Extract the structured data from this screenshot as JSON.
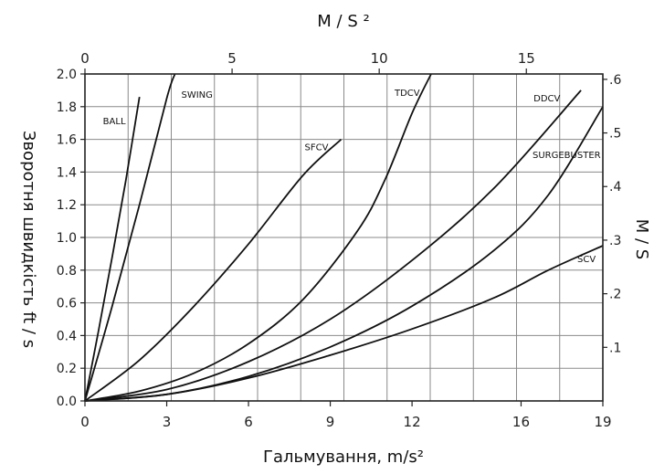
{
  "chart_data": {
    "type": "line",
    "xlabel": "Гальмування, m/s²",
    "x2label": "M / S ²",
    "ylabel": "Зворотня швидкість ft / s",
    "y2label": "M / S",
    "xlim": [
      0,
      19
    ],
    "ylim": [
      0,
      2.0
    ],
    "x2lim": [
      0,
      17.6
    ],
    "y2lim": [
      0,
      0.61
    ],
    "xticks": [
      "0",
      "3",
      "6",
      "9",
      "12",
      "16",
      "19"
    ],
    "xtick_values": [
      0,
      3,
      6,
      9,
      12,
      16,
      19
    ],
    "x2ticks": [
      "0",
      "5",
      "10",
      "15"
    ],
    "x2tick_values": [
      0,
      5,
      10,
      15
    ],
    "yticks": [
      "0.0",
      "0.2",
      "0.4",
      "0.6",
      "0.8",
      "1.0",
      "1.2",
      "1.4",
      "1.6",
      "1.8",
      "2.0"
    ],
    "ytick_values": [
      0,
      0.2,
      0.4,
      0.6,
      0.8,
      1.0,
      1.2,
      1.4,
      1.6,
      1.8,
      2.0
    ],
    "y2ticks": [
      ".1",
      ".2",
      ".3",
      ".4",
      ".5",
      ".6"
    ],
    "y2tick_values": [
      0.1,
      0.2,
      0.3,
      0.4,
      0.5,
      0.6
    ],
    "grid": true,
    "series": [
      {
        "name": "BALL",
        "x": [
          0,
          0.5,
          1.0,
          1.5,
          2.0
        ],
        "y": [
          0,
          0.43,
          0.88,
          1.35,
          1.86
        ]
      },
      {
        "name": "SWING",
        "x": [
          0,
          1.0,
          2.0,
          3.0,
          3.3
        ],
        "y": [
          0,
          0.58,
          1.2,
          1.85,
          2.0
        ]
      },
      {
        "name": "SFCV",
        "x": [
          0,
          2.0,
          4.0,
          6.0,
          8.0,
          9.4
        ],
        "y": [
          0,
          0.25,
          0.58,
          0.96,
          1.38,
          1.6
        ]
      },
      {
        "name": "TDCV",
        "x": [
          0,
          2.0,
          4.0,
          6.0,
          8.0,
          10.0,
          11.0,
          12.0,
          12.7
        ],
        "y": [
          0,
          0.06,
          0.17,
          0.35,
          0.62,
          1.04,
          1.35,
          1.76,
          2.0
        ]
      },
      {
        "name": "DDCV",
        "x": [
          0,
          3.0,
          6.0,
          9.0,
          12.0,
          15.0,
          18.2
        ],
        "y": [
          0,
          0.07,
          0.24,
          0.5,
          0.86,
          1.3,
          1.9
        ]
      },
      {
        "name": "SURGEBUSTER",
        "x": [
          0,
          3.0,
          6.0,
          9.0,
          12.0,
          15.0,
          17.0,
          19.0
        ],
        "y": [
          0,
          0.04,
          0.15,
          0.33,
          0.58,
          0.92,
          1.26,
          1.8
        ]
      },
      {
        "name": "SCV",
        "x": [
          0,
          3.0,
          6.0,
          9.0,
          12.0,
          15.0,
          17.0,
          19.0
        ],
        "y": [
          0,
          0.04,
          0.14,
          0.28,
          0.44,
          0.63,
          0.8,
          0.95
        ]
      }
    ]
  }
}
